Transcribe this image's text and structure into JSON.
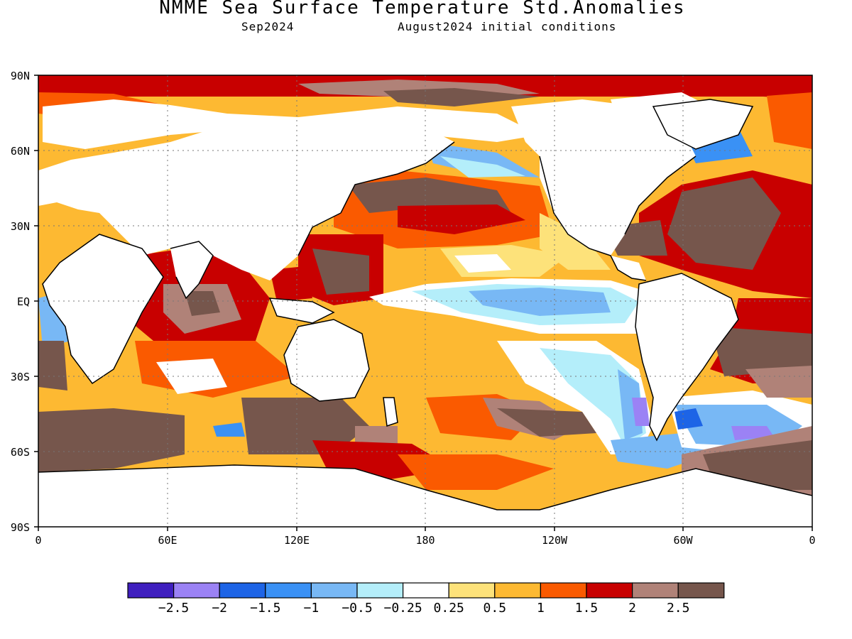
{
  "title": "NMME Sea Surface Temperature Std.Anomalies",
  "subtitle_left": "Sep2024",
  "subtitle_right": "August2024 initial conditions",
  "map": {
    "lat_labels": [
      "90N",
      "60N",
      "30N",
      "EQ",
      "30S",
      "60S",
      "90S"
    ],
    "lon_labels": [
      "0",
      "60E",
      "120E",
      "180",
      "120W",
      "60W",
      "0"
    ],
    "grid": "dotted"
  },
  "colorbar": {
    "colors": [
      "#3f1fbf",
      "#9b82f5",
      "#1d64e6",
      "#3a91f5",
      "#78b8f5",
      "#b4eefa",
      "#ffffff",
      "#fde27a",
      "#fdb932",
      "#fa5a00",
      "#c80000",
      "#b08278",
      "#76564c"
    ],
    "labels": [
      "−2.5",
      "−2",
      "−1.5",
      "−1",
      "−0.5",
      "−0.25",
      "0.25",
      "0.5",
      "1",
      "1.5",
      "2",
      "2.5"
    ]
  }
}
